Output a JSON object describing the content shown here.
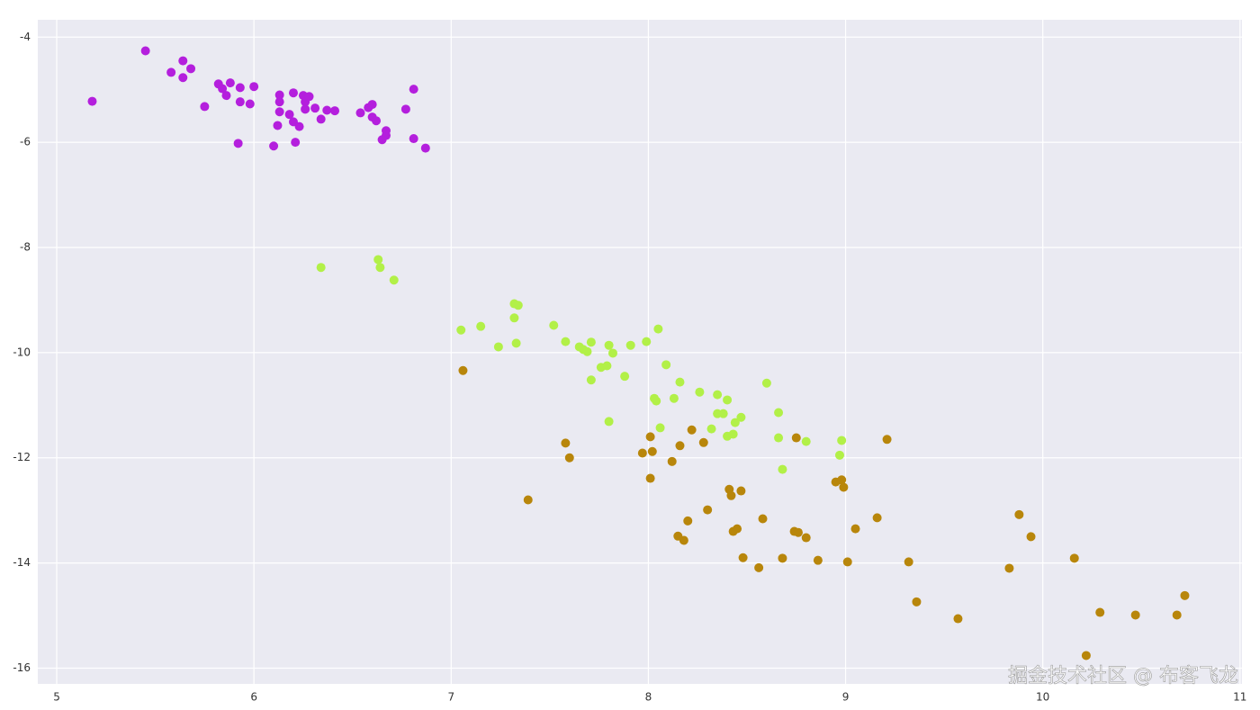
{
  "chart_data": {
    "type": "scatter",
    "xlim": [
      4.904,
      11.01
    ],
    "ylim": [
      -16.3,
      -3.67
    ],
    "xticks": [
      5,
      6,
      7,
      8,
      9,
      10,
      11
    ],
    "yticks": [
      -16,
      -14,
      -12,
      -10,
      -8,
      -6,
      -4
    ],
    "grid": true,
    "annotations": [
      "掘金技术社区 @ 布客飞龙"
    ],
    "series": [
      {
        "color": "#b41fdd",
        "x": [
          5.18,
          5.45,
          5.58,
          5.64,
          5.64,
          5.68,
          5.75,
          5.82,
          5.84,
          5.86,
          5.88,
          5.92,
          5.93,
          5.93,
          5.98,
          6.0,
          6.1,
          6.13,
          6.13,
          6.13,
          6.12,
          6.18,
          6.2,
          6.2,
          6.21,
          6.23,
          6.25,
          6.26,
          6.26,
          6.28,
          6.31,
          6.34,
          6.37,
          6.41,
          6.54,
          6.58,
          6.6,
          6.6,
          6.62,
          6.65,
          6.67,
          6.67,
          6.77,
          6.81,
          6.81,
          6.87
        ],
        "values": [
          -5.22,
          -4.26,
          -4.67,
          -4.45,
          -4.77,
          -4.6,
          -5.32,
          -4.89,
          -4.98,
          -5.11,
          -4.87,
          -6.02,
          -4.96,
          -5.23,
          -5.27,
          -4.94,
          -6.07,
          -5.1,
          -5.23,
          -5.42,
          -5.68,
          -5.47,
          -5.06,
          -5.61,
          -6.0,
          -5.7,
          -5.11,
          -5.23,
          -5.37,
          -5.13,
          -5.35,
          -5.56,
          -5.39,
          -5.4,
          -5.44,
          -5.34,
          -5.28,
          -5.52,
          -5.59,
          -5.95,
          -5.78,
          -5.87,
          -5.37,
          -4.99,
          -5.93,
          -6.11
        ]
      },
      {
        "color": "#b2f048",
        "x": [
          6.34,
          6.63,
          6.64,
          6.71,
          7.05,
          7.15,
          7.24,
          7.32,
          7.34,
          7.32,
          7.33,
          7.52,
          7.58,
          7.65,
          7.67,
          7.69,
          7.71,
          7.71,
          7.76,
          7.79,
          7.8,
          7.82,
          7.8,
          7.88,
          7.91,
          7.99,
          8.05,
          8.03,
          8.04,
          8.06,
          8.09,
          8.13,
          8.16,
          8.26,
          8.35,
          8.32,
          8.35,
          8.38,
          8.4,
          8.4,
          8.44,
          8.43,
          8.47,
          8.6,
          8.66,
          8.66,
          8.8,
          8.68,
          8.98,
          8.97
        ],
        "values": [
          -8.38,
          -8.23,
          -8.38,
          -8.62,
          -9.57,
          -9.5,
          -9.89,
          -9.07,
          -9.1,
          -9.34,
          -9.82,
          -9.48,
          -9.79,
          -9.89,
          -9.94,
          -9.98,
          -9.8,
          -10.52,
          -10.28,
          -10.25,
          -9.86,
          -10.01,
          -11.31,
          -10.45,
          -9.86,
          -9.79,
          -9.55,
          -10.87,
          -10.92,
          -11.43,
          -10.23,
          -10.87,
          -10.56,
          -10.75,
          -10.8,
          -11.45,
          -11.16,
          -11.16,
          -10.9,
          -11.59,
          -11.33,
          -11.55,
          -11.23,
          -10.58,
          -11.14,
          -11.62,
          -11.69,
          -12.22,
          -11.67,
          -11.95
        ]
      },
      {
        "color": "#b8860b",
        "x": [
          7.06,
          7.39,
          7.58,
          7.6,
          7.97,
          8.01,
          8.02,
          8.01,
          8.12,
          8.16,
          8.22,
          8.28,
          8.2,
          8.15,
          8.18,
          8.3,
          8.41,
          8.42,
          8.47,
          8.43,
          8.45,
          8.48,
          8.56,
          8.58,
          8.68,
          8.75,
          8.74,
          8.76,
          8.8,
          8.86,
          8.95,
          8.98,
          8.99,
          9.01,
          9.05,
          9.16,
          9.21,
          9.32,
          9.36,
          9.57,
          9.83,
          9.88,
          9.94,
          10.16,
          10.22,
          10.29,
          10.47,
          10.68,
          10.72
        ],
        "values": [
          -10.34,
          -12.8,
          -11.72,
          -12.0,
          -11.91,
          -11.6,
          -11.88,
          -12.39,
          -12.07,
          -11.77,
          -11.47,
          -11.71,
          -13.2,
          -13.49,
          -13.57,
          -12.99,
          -12.6,
          -12.72,
          -12.63,
          -13.4,
          -13.35,
          -13.9,
          -14.09,
          -13.16,
          -13.91,
          -11.62,
          -13.4,
          -13.42,
          -13.52,
          -13.95,
          -12.46,
          -12.42,
          -12.56,
          -13.98,
          -13.35,
          -13.14,
          -11.65,
          -13.98,
          -14.74,
          -15.06,
          -14.1,
          -13.08,
          -13.5,
          -13.91,
          -15.76,
          -14.94,
          -14.99,
          -14.99,
          -14.62
        ]
      }
    ]
  }
}
